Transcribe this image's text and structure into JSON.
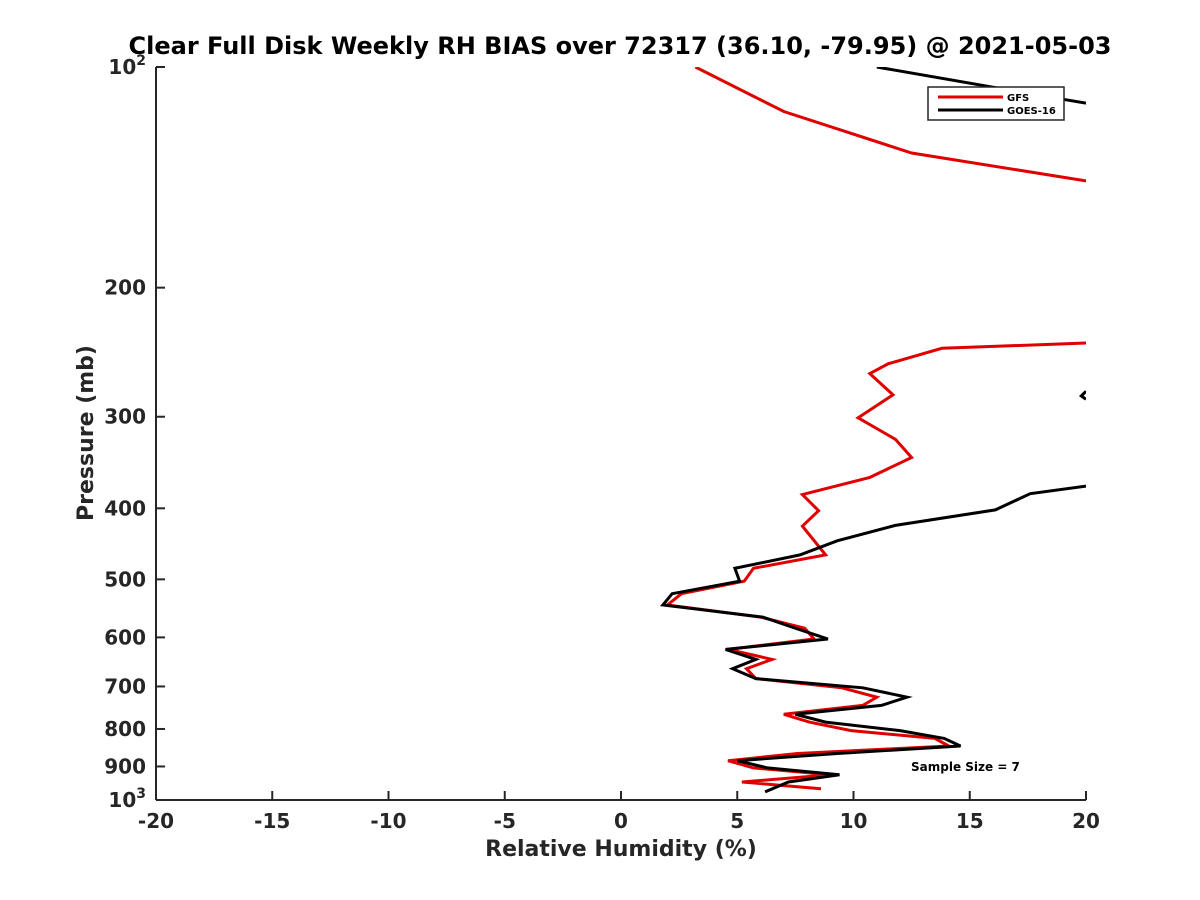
{
  "chart_data": {
    "type": "line",
    "title": "Clear Full Disk Weekly RH BIAS over 72317 (36.10, -79.95) @ 2021-05-03",
    "xlabel": "Relative Humidity (%)",
    "ylabel": "Pressure (mb)",
    "xlim": [
      -20,
      20
    ],
    "ylim": [
      1000,
      100
    ],
    "y_scale": "log",
    "y_reversed": true,
    "x_ticks": [
      -20,
      -15,
      -10,
      -5,
      0,
      5,
      10,
      15,
      20
    ],
    "x_tick_labels": [
      "-20",
      "-15",
      "-10",
      "-5",
      "0",
      "5",
      "10",
      "15",
      "20"
    ],
    "y_ticks": [
      100,
      200,
      300,
      400,
      500,
      600,
      700,
      800,
      900,
      1000
    ],
    "y_tick_labels": [
      {
        "base": "10",
        "exp": "2"
      },
      {
        "base": "200",
        "exp": ""
      },
      {
        "base": "300",
        "exp": ""
      },
      {
        "base": "400",
        "exp": ""
      },
      {
        "base": "500",
        "exp": ""
      },
      {
        "base": "600",
        "exp": ""
      },
      {
        "base": "700",
        "exp": ""
      },
      {
        "base": "800",
        "exp": ""
      },
      {
        "base": "900",
        "exp": ""
      },
      {
        "base": "10",
        "exp": "3"
      }
    ],
    "grid": false,
    "legend_position": "top-right",
    "annotation": "Sample Size = 7",
    "series": [
      {
        "name": "GFS",
        "color": "#e00000",
        "segments": [
          [
            {
              "x": 3.2,
              "y": 100
            },
            {
              "x": 7.0,
              "y": 115
            },
            {
              "x": 12.5,
              "y": 131
            },
            {
              "x": 20.0,
              "y": 143
            }
          ],
          [
            {
              "x": 20.0,
              "y": 238
            },
            {
              "x": 13.8,
              "y": 242
            },
            {
              "x": 11.5,
              "y": 254
            },
            {
              "x": 10.7,
              "y": 262
            },
            {
              "x": 11.7,
              "y": 280
            },
            {
              "x": 10.2,
              "y": 301
            },
            {
              "x": 11.8,
              "y": 322
            },
            {
              "x": 12.5,
              "y": 341
            },
            {
              "x": 10.7,
              "y": 363
            },
            {
              "x": 7.8,
              "y": 383
            },
            {
              "x": 8.5,
              "y": 403
            },
            {
              "x": 7.8,
              "y": 423
            },
            {
              "x": 8.8,
              "y": 463
            },
            {
              "x": 5.7,
              "y": 483
            },
            {
              "x": 5.3,
              "y": 503
            },
            {
              "x": 2.6,
              "y": 523
            },
            {
              "x": 2.0,
              "y": 542
            },
            {
              "x": 6.0,
              "y": 563
            },
            {
              "x": 7.9,
              "y": 583
            },
            {
              "x": 8.3,
              "y": 603
            },
            {
              "x": 4.6,
              "y": 623
            },
            {
              "x": 6.5,
              "y": 643
            },
            {
              "x": 5.4,
              "y": 662
            },
            {
              "x": 5.8,
              "y": 683
            },
            {
              "x": 9.5,
              "y": 703
            },
            {
              "x": 11.0,
              "y": 724
            },
            {
              "x": 10.4,
              "y": 743
            },
            {
              "x": 7.0,
              "y": 764
            },
            {
              "x": 8.1,
              "y": 783
            },
            {
              "x": 9.9,
              "y": 804
            },
            {
              "x": 13.5,
              "y": 824
            },
            {
              "x": 14.1,
              "y": 844
            },
            {
              "x": 7.6,
              "y": 864
            },
            {
              "x": 4.6,
              "y": 884
            },
            {
              "x": 5.7,
              "y": 904
            },
            {
              "x": 9.0,
              "y": 924
            },
            {
              "x": 5.2,
              "y": 945
            },
            {
              "x": 8.6,
              "y": 965
            }
          ]
        ]
      },
      {
        "name": "GOES-16",
        "color": "#000000",
        "segments": [
          [
            {
              "x": 11.0,
              "y": 100
            },
            {
              "x": 18.5,
              "y": 110
            },
            {
              "x": 20.0,
              "y": 112
            }
          ],
          [
            {
              "x": 20.0,
              "y": 277
            },
            {
              "x": 19.8,
              "y": 281
            },
            {
              "x": 20.0,
              "y": 284
            }
          ],
          [
            {
              "x": 20.0,
              "y": 373
            },
            {
              "x": 17.6,
              "y": 382
            },
            {
              "x": 16.1,
              "y": 402
            },
            {
              "x": 11.8,
              "y": 422
            },
            {
              "x": 9.3,
              "y": 443
            },
            {
              "x": 7.7,
              "y": 463
            },
            {
              "x": 4.9,
              "y": 483
            },
            {
              "x": 5.1,
              "y": 503
            },
            {
              "x": 2.2,
              "y": 523
            },
            {
              "x": 1.8,
              "y": 542
            },
            {
              "x": 6.1,
              "y": 563
            },
            {
              "x": 7.5,
              "y": 583
            },
            {
              "x": 8.9,
              "y": 603
            },
            {
              "x": 4.5,
              "y": 623
            },
            {
              "x": 5.8,
              "y": 643
            },
            {
              "x": 4.8,
              "y": 662
            },
            {
              "x": 5.8,
              "y": 683
            },
            {
              "x": 10.4,
              "y": 703
            },
            {
              "x": 12.3,
              "y": 724
            },
            {
              "x": 11.2,
              "y": 743
            },
            {
              "x": 7.5,
              "y": 764
            },
            {
              "x": 8.8,
              "y": 783
            },
            {
              "x": 12.0,
              "y": 804
            },
            {
              "x": 13.9,
              "y": 824
            },
            {
              "x": 14.6,
              "y": 844
            },
            {
              "x": 9.3,
              "y": 864
            },
            {
              "x": 5.0,
              "y": 884
            },
            {
              "x": 6.3,
              "y": 904
            },
            {
              "x": 9.4,
              "y": 924
            },
            {
              "x": 7.2,
              "y": 945
            },
            {
              "x": 6.2,
              "y": 975
            }
          ]
        ]
      }
    ]
  }
}
